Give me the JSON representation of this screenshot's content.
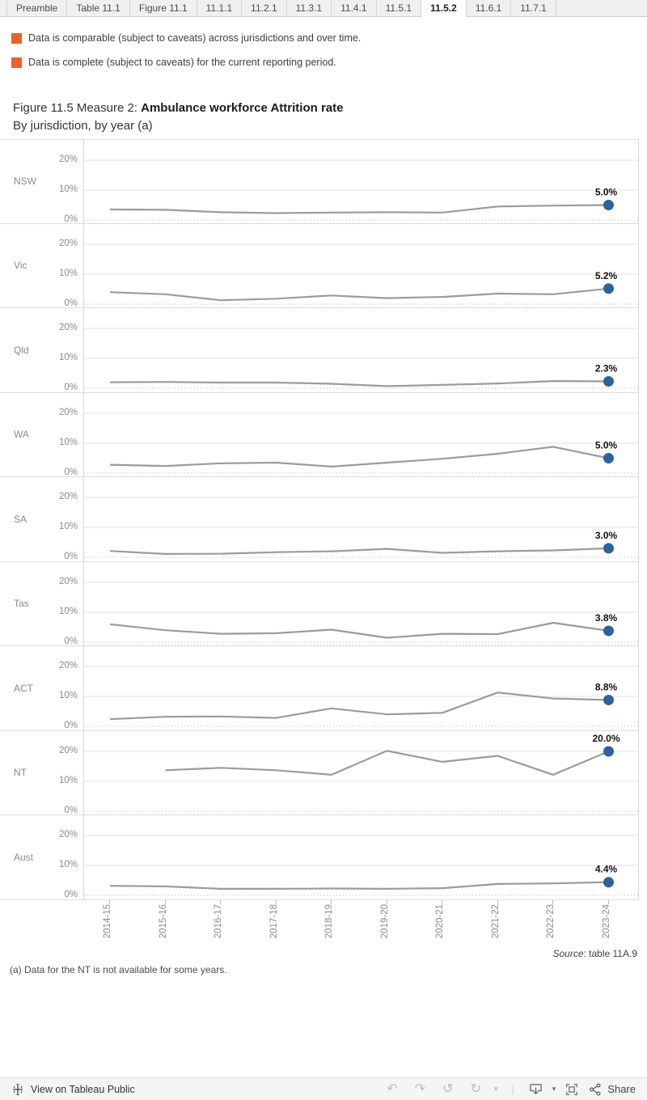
{
  "tabs": {
    "active": "11.5.2",
    "items": [
      "Preamble",
      "Table 11.1",
      "Figure 11.1",
      "11.1.1",
      "11.2.1",
      "11.3.1",
      "11.4.1",
      "11.5.1",
      "11.5.2",
      "11.6.1",
      "11.7.1"
    ]
  },
  "legend": {
    "items": [
      "Data is comparable (subject to caveats) across jurisdictions and over time.",
      "Data is complete (subject to caveats) for the current reporting period."
    ]
  },
  "title": {
    "prefix": "Figure 11.5 Measure 2: ",
    "bold": "Ambulance workforce Attrition rate",
    "subtitle": "By jurisdiction, by year (a)"
  },
  "chart_data": {
    "type": "line",
    "title": "Figure 11.5 Measure 2: Ambulance workforce Attrition rate",
    "subtitle": "By jurisdiction, by year (a)",
    "x": [
      "2014-15",
      "2015-16",
      "2016-17",
      "2017-18",
      "2018-19",
      "2019-20",
      "2020-21",
      "2021-22",
      "2022-23",
      "2023-24"
    ],
    "yticks": [
      "20%",
      "10%",
      "0%"
    ],
    "ylim": [
      0,
      25
    ],
    "unit": "%",
    "layout": {
      "panels": "small multiples, one row per jurisdiction",
      "grid": "solid lines at 10% and 20%, dotted baseline at 0%",
      "legend_position": "none",
      "last_point": "highlighted blue dot with bold data label"
    },
    "series": [
      {
        "name": "NSW",
        "values": [
          3.5,
          3.4,
          2.6,
          2.3,
          2.5,
          2.6,
          2.5,
          4.5,
          4.8,
          5.0
        ],
        "last_label": "5.0%"
      },
      {
        "name": "Vic",
        "values": [
          4.0,
          3.3,
          1.3,
          1.8,
          2.9,
          2.0,
          2.4,
          3.5,
          3.3,
          5.2
        ],
        "last_label": "5.2%"
      },
      {
        "name": "Qld",
        "values": [
          2.0,
          2.1,
          1.9,
          1.9,
          1.5,
          0.7,
          1.1,
          1.6,
          2.4,
          2.3
        ],
        "last_label": "2.3%"
      },
      {
        "name": "WA",
        "values": [
          2.8,
          2.4,
          3.3,
          3.5,
          2.2,
          3.5,
          4.8,
          6.5,
          8.8,
          5.0
        ],
        "last_label": "5.0%"
      },
      {
        "name": "SA",
        "values": [
          2.1,
          1.1,
          1.2,
          1.7,
          2.0,
          2.8,
          1.5,
          2.0,
          2.3,
          3.0
        ],
        "last_label": "3.0%"
      },
      {
        "name": "Tas",
        "values": [
          6.0,
          4.0,
          2.8,
          3.0,
          4.2,
          1.5,
          2.8,
          2.7,
          6.5,
          3.8
        ],
        "last_label": "3.8%"
      },
      {
        "name": "ACT",
        "values": [
          2.4,
          3.2,
          3.3,
          2.8,
          6.0,
          4.0,
          4.5,
          11.3,
          9.3,
          8.8
        ],
        "last_label": "8.8%"
      },
      {
        "name": "NT",
        "values": [
          null,
          13.7,
          14.5,
          13.7,
          12.2,
          20.2,
          16.5,
          18.5,
          12.2,
          20.0
        ],
        "last_label": "20.0%"
      },
      {
        "name": "Aust",
        "values": [
          3.2,
          3.0,
          2.2,
          2.2,
          2.3,
          2.2,
          2.4,
          3.8,
          4.0,
          4.4
        ],
        "last_label": "4.4%"
      }
    ]
  },
  "source": {
    "italic": "Source",
    "rest": ": table 11A.9"
  },
  "footnote": "(a) Data for the NT is not available for some years.",
  "toolbar": {
    "view_label": "View on Tableau Public",
    "share_label": "Share",
    "icons": [
      "tableau-logo",
      "undo",
      "redo",
      "revert",
      "refresh",
      "download",
      "fullscreen",
      "share"
    ]
  },
  "colors": {
    "accent_orange": "#E8622C",
    "dot_blue": "#2D6397",
    "line_gray": "#9B9B9B",
    "grid_gray": "#E1E1E1",
    "axis_text": "#8A8A8A"
  }
}
